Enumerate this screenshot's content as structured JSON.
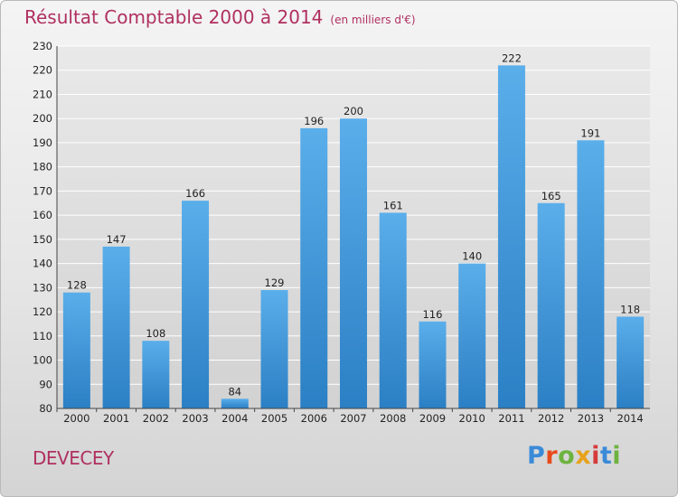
{
  "title": "Résultat Comptable 2000 à 2014",
  "unit": "(en milliers d'€)",
  "commune": "DEVECEY",
  "logo": {
    "text": "Proxiti",
    "letters": [
      {
        "ch": "P",
        "color": "#3a8ad8"
      },
      {
        "ch": "r",
        "color": "#e84a1c"
      },
      {
        "ch": "o",
        "color": "#6db33f"
      },
      {
        "ch": "x",
        "color": "#e8a21c"
      },
      {
        "ch": "i",
        "color": "#d63a3a"
      },
      {
        "ch": "t",
        "color": "#3a8ad8"
      },
      {
        "ch": "i",
        "color": "#6db33f"
      }
    ]
  },
  "colors": {
    "bar_top": "#5aaeea",
    "bar_bottom": "#2b7fc4",
    "grid": "#ffffff",
    "title": "#b03060"
  },
  "chart_data": {
    "type": "bar",
    "categories": [
      "2000",
      "2001",
      "2002",
      "2003",
      "2004",
      "2005",
      "2006",
      "2007",
      "2008",
      "2009",
      "2010",
      "2011",
      "2012",
      "2013",
      "2014"
    ],
    "values": [
      128,
      147,
      108,
      166,
      84,
      129,
      196,
      200,
      161,
      116,
      140,
      222,
      165,
      191,
      118
    ],
    "yticks": [
      80,
      90,
      100,
      110,
      120,
      130,
      140,
      150,
      160,
      170,
      180,
      190,
      200,
      210,
      220,
      230
    ],
    "ylim": [
      80,
      230
    ],
    "grid": true
  }
}
